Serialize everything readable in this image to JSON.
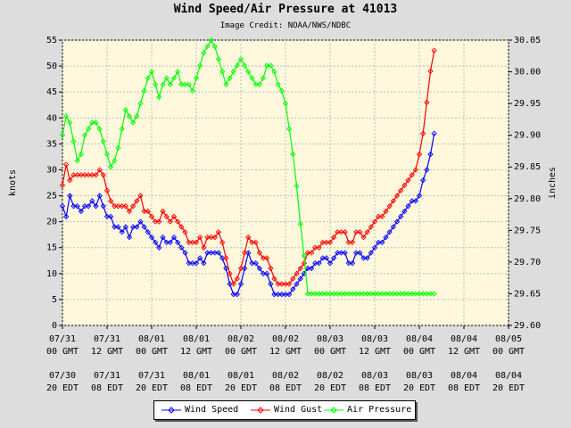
{
  "chart_data": {
    "type": "line",
    "title": "Wind Speed/Air Pressure at 41013",
    "subtitle": "Image Credit: NOAA/NWS/NDBC",
    "ylabel_left": "knots",
    "ylabel_right": "inches",
    "ylim_left": [
      0,
      55
    ],
    "yticks_left": [
      "0",
      "5",
      "10",
      "15",
      "20",
      "25",
      "30",
      "35",
      "40",
      "45",
      "50",
      "55"
    ],
    "ylim_right": [
      29.6,
      30.05
    ],
    "yticks_right": [
      "29.60",
      "29.65",
      "29.70",
      "29.75",
      "29.80",
      "29.85",
      "29.90",
      "29.95",
      "30.00",
      "30.05"
    ],
    "xlim_hours": [
      0,
      120
    ],
    "xticks_gmt": [
      {
        "date": "07/31",
        "time": "00 GMT"
      },
      {
        "date": "07/31",
        "time": "12 GMT"
      },
      {
        "date": "08/01",
        "time": "00 GMT"
      },
      {
        "date": "08/01",
        "time": "12 GMT"
      },
      {
        "date": "08/02",
        "time": "00 GMT"
      },
      {
        "date": "08/02",
        "time": "12 GMT"
      },
      {
        "date": "08/03",
        "time": "00 GMT"
      },
      {
        "date": "08/03",
        "time": "12 GMT"
      },
      {
        "date": "08/04",
        "time": "00 GMT"
      },
      {
        "date": "08/04",
        "time": "12 GMT"
      },
      {
        "date": "08/05",
        "time": "00 GMT"
      }
    ],
    "xticks_edt": [
      {
        "date": "07/30",
        "time": "20 EDT"
      },
      {
        "date": "07/31",
        "time": "08 EDT"
      },
      {
        "date": "07/31",
        "time": "20 EDT"
      },
      {
        "date": "08/01",
        "time": "08 EDT"
      },
      {
        "date": "08/01",
        "time": "20 EDT"
      },
      {
        "date": "08/02",
        "time": "08 EDT"
      },
      {
        "date": "08/02",
        "time": "20 EDT"
      },
      {
        "date": "08/03",
        "time": "08 EDT"
      },
      {
        "date": "08/03",
        "time": "20 EDT"
      },
      {
        "date": "08/04",
        "time": "08 EDT"
      },
      {
        "date": "08/04",
        "time": "20 EDT"
      }
    ],
    "grid": true,
    "legend_placement": "bottom-center",
    "series": [
      {
        "name": "Wind Speed",
        "axis": "left",
        "color": "#0000ff",
        "x": [
          0,
          1,
          2,
          3,
          4,
          5,
          6,
          7,
          8,
          9,
          10,
          11,
          12,
          13,
          14,
          15,
          16,
          17,
          18,
          19,
          20,
          21,
          22,
          23,
          24,
          25,
          26,
          27,
          28,
          29,
          30,
          31,
          32,
          33,
          34,
          35,
          36,
          37,
          38,
          39,
          40,
          41,
          42,
          43,
          44,
          45,
          46,
          47,
          48,
          49,
          50,
          51,
          52,
          53,
          54,
          55,
          56,
          57,
          58,
          59,
          60,
          61,
          62,
          63,
          64,
          65,
          66,
          67,
          68,
          69,
          70,
          71,
          72,
          73,
          74,
          75,
          76,
          77,
          78,
          79,
          80,
          81,
          82,
          83,
          84,
          85,
          86,
          87,
          88,
          89,
          90,
          91,
          92,
          93,
          94,
          95,
          96,
          97,
          98,
          99,
          100
        ],
        "values": [
          23,
          21,
          25,
          23,
          23,
          22,
          23,
          23,
          24,
          23,
          25,
          23,
          21,
          21,
          19,
          19,
          18,
          19,
          17,
          19,
          19,
          20,
          19,
          18,
          17,
          16,
          15,
          17,
          16,
          16,
          17,
          16,
          15,
          14,
          12,
          12,
          12,
          13,
          12,
          14,
          14,
          14,
          14,
          13,
          11,
          8,
          6,
          6,
          8,
          11,
          14,
          12,
          12,
          11,
          10,
          10,
          8,
          6,
          6,
          6,
          6,
          6,
          7,
          8,
          9,
          10,
          11,
          11,
          12,
          12,
          13,
          13,
          12,
          13,
          14,
          14,
          14,
          12,
          12,
          14,
          14,
          13,
          13,
          14,
          15,
          16,
          16,
          17,
          18,
          19,
          20,
          21,
          22,
          23,
          24,
          24,
          25,
          28,
          30,
          33,
          37
        ]
      },
      {
        "name": "Wind Gust",
        "axis": "left",
        "color": "#ff0000",
        "x": [
          0,
          1,
          2,
          3,
          4,
          5,
          6,
          7,
          8,
          9,
          10,
          11,
          12,
          13,
          14,
          15,
          16,
          17,
          18,
          19,
          20,
          21,
          22,
          23,
          24,
          25,
          26,
          27,
          28,
          29,
          30,
          31,
          32,
          33,
          34,
          35,
          36,
          37,
          38,
          39,
          40,
          41,
          42,
          43,
          44,
          45,
          46,
          47,
          48,
          49,
          50,
          51,
          52,
          53,
          54,
          55,
          56,
          57,
          58,
          59,
          60,
          61,
          62,
          63,
          64,
          65,
          66,
          67,
          68,
          69,
          70,
          71,
          72,
          73,
          74,
          75,
          76,
          77,
          78,
          79,
          80,
          81,
          82,
          83,
          84,
          85,
          86,
          87,
          88,
          89,
          90,
          91,
          92,
          93,
          94,
          95,
          96,
          97,
          98,
          99,
          100
        ],
        "values": [
          27,
          31,
          28,
          29,
          29,
          29,
          29,
          29,
          29,
          29,
          30,
          29,
          26,
          24,
          23,
          23,
          23,
          23,
          22,
          23,
          24,
          25,
          22,
          22,
          21,
          20,
          20,
          22,
          21,
          20,
          21,
          20,
          19,
          18,
          16,
          16,
          16,
          17,
          15,
          17,
          17,
          17,
          18,
          16,
          13,
          10,
          8,
          9,
          11,
          14,
          17,
          16,
          16,
          14,
          13,
          13,
          11,
          9,
          8,
          8,
          8,
          8,
          9,
          10,
          11,
          12,
          14,
          14,
          15,
          15,
          16,
          16,
          16,
          17,
          18,
          18,
          18,
          16,
          16,
          18,
          18,
          17,
          18,
          19,
          20,
          21,
          21,
          22,
          23,
          24,
          25,
          26,
          27,
          28,
          29,
          30,
          33,
          37,
          43,
          49,
          53
        ]
      },
      {
        "name": "Air Pressure",
        "axis": "right",
        "color": "#00ff00",
        "x": [
          0,
          1,
          2,
          3,
          4,
          5,
          6,
          7,
          8,
          9,
          10,
          11,
          12,
          13,
          14,
          15,
          16,
          17,
          18,
          19,
          20,
          21,
          22,
          23,
          24,
          25,
          26,
          27,
          28,
          29,
          30,
          31,
          32,
          33,
          34,
          35,
          36,
          37,
          38,
          39,
          40,
          41,
          42,
          43,
          44,
          45,
          46,
          47,
          48,
          49,
          50,
          51,
          52,
          53,
          54,
          55,
          56,
          57,
          58,
          59,
          60,
          61,
          62,
          63,
          64,
          65,
          66,
          67,
          68,
          69,
          70,
          71,
          72,
          73,
          74,
          75,
          76,
          77,
          78,
          79,
          80,
          81,
          82,
          83,
          84,
          85,
          86,
          87,
          88,
          89,
          90,
          91,
          92,
          93,
          94,
          95,
          96,
          97,
          98,
          99,
          100
        ],
        "values": [
          29.9,
          29.93,
          29.92,
          29.89,
          29.86,
          29.87,
          29.9,
          29.91,
          29.92,
          29.92,
          29.91,
          29.89,
          29.87,
          29.85,
          29.86,
          29.88,
          29.91,
          29.94,
          29.93,
          29.92,
          29.93,
          29.95,
          29.97,
          29.99,
          30.0,
          29.98,
          29.96,
          29.98,
          29.99,
          29.98,
          29.99,
          30.0,
          29.98,
          29.98,
          29.98,
          29.97,
          29.99,
          30.01,
          30.03,
          30.04,
          30.05,
          30.04,
          30.02,
          30.0,
          29.98,
          29.99,
          30.0,
          30.01,
          30.02,
          30.01,
          30.0,
          29.99,
          29.98,
          29.98,
          29.99,
          30.01,
          30.01,
          30.0,
          29.98,
          29.97,
          29.95,
          29.91,
          29.87,
          29.82,
          29.76,
          29.71,
          29.65,
          29.65,
          29.65,
          29.65,
          29.65,
          29.65,
          29.65,
          29.65,
          29.65,
          29.65,
          29.65,
          29.65,
          29.65,
          29.65,
          29.65,
          29.65,
          29.65,
          29.65,
          29.65,
          29.65,
          29.65,
          29.65,
          29.65,
          29.65,
          29.65,
          29.65,
          29.65,
          29.65,
          29.65,
          29.65,
          29.65,
          29.65,
          29.65,
          29.65,
          29.65
        ]
      }
    ]
  },
  "legend": {
    "items": [
      {
        "label": "Wind Speed",
        "color": "#0000ff"
      },
      {
        "label": "Wind Gust",
        "color": "#ff0000"
      },
      {
        "label": "Air Pressure",
        "color": "#00ff00"
      }
    ]
  },
  "colors": {
    "plot_background": "#fff8dc",
    "page_background": "#dddddd"
  }
}
